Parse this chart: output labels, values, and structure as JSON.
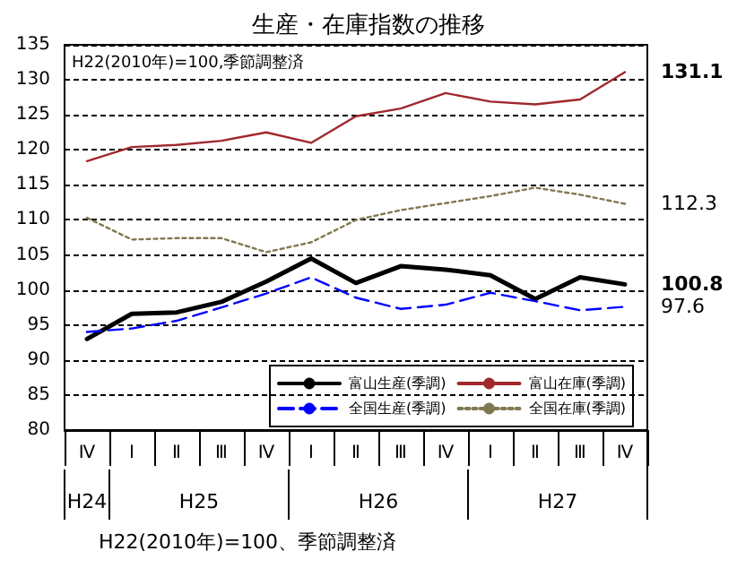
{
  "chart_data": {
    "type": "line",
    "title": "生産・在庫指数の推移",
    "categories": [
      "Ⅳ",
      "Ⅰ",
      "Ⅱ",
      "Ⅲ",
      "Ⅳ",
      "Ⅰ",
      "Ⅱ",
      "Ⅲ",
      "Ⅳ",
      "Ⅰ",
      "Ⅱ",
      "Ⅲ",
      "Ⅳ"
    ],
    "series": [
      {
        "name": "富山生産(季調)",
        "color": "#000000",
        "line_style": "solid",
        "values": [
          93.0,
          96.6,
          96.8,
          98.3,
          101.2,
          104.5,
          101.0,
          103.4,
          102.9,
          102.1,
          98.7,
          101.8,
          100.8
        ],
        "value_labels": [
          null,
          null,
          null,
          null,
          null,
          null,
          null,
          null,
          null,
          null,
          null,
          null,
          "100.8"
        ]
      },
      {
        "name": "富山在庫(季調)",
        "color": "#a0282d",
        "line_style": "solid",
        "values": [
          118.4,
          120.4,
          120.7,
          121.3,
          122.5,
          121.0,
          124.8,
          125.9,
          128.1,
          126.9,
          126.5,
          127.2,
          131.1
        ],
        "value_labels": [
          null,
          null,
          null,
          null,
          null,
          null,
          null,
          null,
          null,
          null,
          null,
          null,
          "131.1"
        ]
      },
      {
        "name": "全国生産(季調)",
        "color": "#0000ff",
        "line_style": "dashed",
        "values": [
          94.0,
          94.5,
          95.6,
          97.5,
          99.5,
          101.8,
          98.9,
          97.3,
          97.9,
          99.6,
          98.4,
          97.1,
          97.6
        ],
        "value_labels": [
          null,
          null,
          null,
          null,
          null,
          null,
          null,
          null,
          null,
          null,
          null,
          null,
          "97.6"
        ]
      },
      {
        "name": "全国在庫(季調)",
        "color": "#807850",
        "line_style": "dotted",
        "values": [
          110.3,
          107.2,
          107.4,
          107.4,
          105.4,
          106.8,
          110.0,
          111.4,
          112.4,
          113.4,
          114.6,
          113.6,
          112.3
        ],
        "value_labels": [
          null,
          null,
          null,
          null,
          null,
          null,
          null,
          null,
          null,
          null,
          null,
          null,
          "112.3"
        ]
      }
    ],
    "ylim": [
      80,
      135
    ],
    "yticks": [
      80,
      85,
      90,
      95,
      100,
      105,
      110,
      115,
      120,
      125,
      130,
      135
    ],
    "grid": "y",
    "legend": "bottom right",
    "marker": "none",
    "annotations": [
      "H22(2010年)=100,季節調整済",
      "H24",
      "H25",
      "H26",
      "H27",
      "H22(2010年)=100、季節調整済"
    ]
  }
}
